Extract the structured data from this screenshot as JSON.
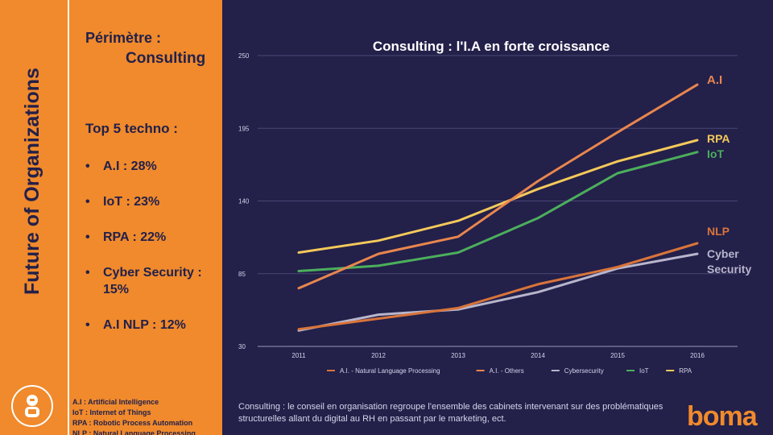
{
  "sidebar": {
    "vertical_title": "Future of Organizations",
    "scope_label": "Périmètre :",
    "scope_value": "Consulting",
    "top5_title": "Top 5 techno :",
    "top5_items": [
      "A.I : 28%",
      "IoT : 23%",
      "RPA : 22%",
      "Cyber Security : 15%",
      "A.I NLP : 12%"
    ],
    "glossary": [
      "A.I : Artificial Intelligence",
      "IoT : Internet of Things",
      "RPA : Robotic Process Automation",
      "NLP : Natural Language Processing"
    ]
  },
  "chart_data": {
    "type": "line",
    "title": "Consulting : l'I.A en forte croissance",
    "x": [
      "2011",
      "2012",
      "2013",
      "2014",
      "2015",
      "2016"
    ],
    "ylim": [
      30,
      250
    ],
    "yticks": [
      30,
      85,
      140,
      195,
      250
    ],
    "series": [
      {
        "name": "A.I. - Natural Language Processing",
        "label": "NLP",
        "color": "#d9743a",
        "values": [
          43,
          51,
          59,
          77,
          90,
          108
        ]
      },
      {
        "name": "A.I. - Others",
        "label": "A.I",
        "color": "#e8864e",
        "values": [
          74,
          100,
          113,
          155,
          192,
          228
        ]
      },
      {
        "name": "Cybersecurity",
        "label": "Cyber\nSecurity",
        "color": "#b8b5cc",
        "values": [
          42,
          54,
          58,
          71,
          89,
          100
        ]
      },
      {
        "name": "IoT",
        "label": "IoT",
        "color": "#4cae5c",
        "values": [
          87,
          91,
          101,
          127,
          161,
          177
        ]
      },
      {
        "name": "RPA",
        "label": "RPA",
        "color": "#f4c95a",
        "values": [
          101,
          110,
          125,
          149,
          170,
          186
        ]
      }
    ],
    "legend_position": "bottom",
    "grid": true
  },
  "footnote": "Consulting : le conseil en organisation regroupe l'ensemble des cabinets intervenant sur des problématiques structurelles allant du digital au RH en passant par le marketing, ect.",
  "brand": "boma",
  "colors": {
    "background": "#23204a",
    "sidebar": "#f08a2c"
  }
}
